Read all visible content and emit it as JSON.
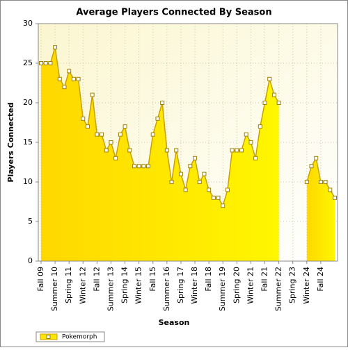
{
  "chart_data": {
    "type": "area",
    "title": "Average Players Connected By Season",
    "x_label": "Season",
    "y_label": "Players Connected",
    "categories": [
      "Fall 09",
      null,
      null,
      "Summer 10",
      null,
      null,
      "Spring 11",
      null,
      null,
      "Winter 12",
      null,
      null,
      "Fall 12",
      null,
      null,
      "Summer 13",
      null,
      null,
      "Spring 14",
      null,
      null,
      "Winter 15",
      null,
      null,
      "Fall 15",
      null,
      null,
      "Summer 16",
      null,
      null,
      "Spring 17",
      null,
      null,
      "Winter 18",
      null,
      null,
      "Fall 18",
      null,
      null,
      "Summer 19",
      null,
      null,
      "Spring 20",
      null,
      null,
      "Winter 21",
      null,
      null,
      "Fall 21",
      null,
      null,
      "Summer 22",
      null,
      null,
      "Spring 23",
      null,
      null,
      "Winter 24",
      null,
      null,
      "Fall 24",
      null,
      null,
      null
    ],
    "series": [
      {
        "name": "Pokemorph",
        "color": "#ffe600",
        "values": [
          25,
          25,
          25,
          27,
          23,
          22,
          24,
          23,
          23,
          18,
          17,
          21,
          16,
          16,
          14,
          15,
          13,
          16,
          17,
          14,
          12,
          12,
          12,
          12,
          16,
          18,
          20,
          14,
          10,
          14,
          11,
          9,
          12,
          13,
          10,
          11,
          9,
          8,
          8,
          7,
          9,
          14,
          14,
          14,
          16,
          15,
          13,
          17,
          20,
          23,
          21,
          20,
          null,
          null,
          null,
          null,
          null,
          10,
          12,
          13,
          10,
          10,
          9,
          8
        ]
      }
    ],
    "ylim": [
      0,
      30
    ],
    "yticks": [
      0,
      5,
      10,
      15,
      20,
      25,
      30
    ],
    "grid": true,
    "legend": "bottom-left"
  }
}
